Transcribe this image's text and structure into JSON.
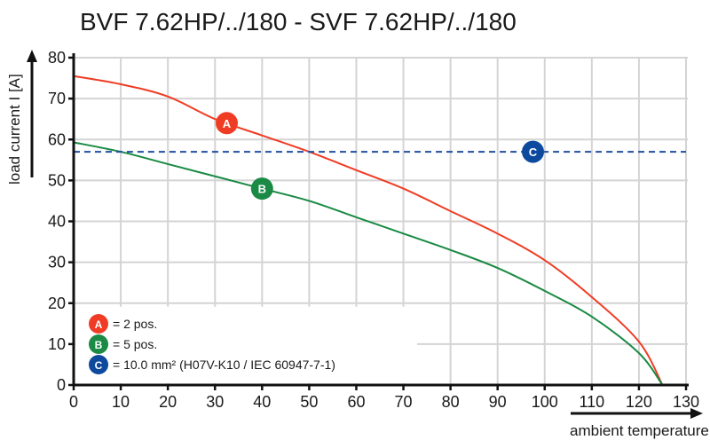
{
  "chart_data": {
    "type": "line",
    "title": "BVF 7.62HP/../180 - SVF 7.62HP/../180",
    "xlabel": "ambient temperature T [°C]",
    "ylabel": "load current I [A]",
    "xlim": [
      0,
      130
    ],
    "ylim": [
      0,
      80
    ],
    "xticks": [
      0,
      10,
      20,
      30,
      40,
      50,
      60,
      70,
      80,
      90,
      100,
      110,
      120,
      130
    ],
    "yticks": [
      0,
      10,
      20,
      30,
      40,
      50,
      60,
      70,
      80
    ],
    "grid": true,
    "legend_position": "bottom-left",
    "series": [
      {
        "marker": "A",
        "color": "#f03c24",
        "x": [
          0,
          10,
          20,
          30,
          40,
          50,
          60,
          70,
          80,
          90,
          100,
          110,
          120,
          125
        ],
        "y": [
          75.5,
          73.5,
          70.5,
          65,
          61,
          57,
          52.5,
          48,
          42.5,
          37,
          30.5,
          21.5,
          10.6,
          0
        ],
        "label_at": [
          32.5,
          64
        ]
      },
      {
        "marker": "B",
        "color": "#1a8a44",
        "x": [
          0,
          10,
          20,
          30,
          40,
          50,
          60,
          70,
          80,
          90,
          100,
          110,
          120,
          125
        ],
        "y": [
          59.3,
          57,
          54,
          51,
          48,
          45,
          41,
          37,
          33,
          28.6,
          23,
          16.7,
          7.8,
          0
        ],
        "label_at": [
          40,
          48
        ]
      },
      {
        "marker": "C",
        "color": "#1f4fa0",
        "style": "dashed",
        "x": [
          0,
          130
        ],
        "y": [
          57,
          57
        ],
        "label_at": [
          97.5,
          57
        ]
      }
    ],
    "legend": [
      {
        "marker": "A",
        "color": "#f03c24",
        "text": "= 2 pos."
      },
      {
        "marker": "B",
        "color": "#1a8a44",
        "text": "= 5 pos."
      },
      {
        "marker": "C",
        "color": "#0d4a9e",
        "text": "= 10.0 mm² (H07V-K10 / IEC 60947-7-1)"
      }
    ]
  }
}
